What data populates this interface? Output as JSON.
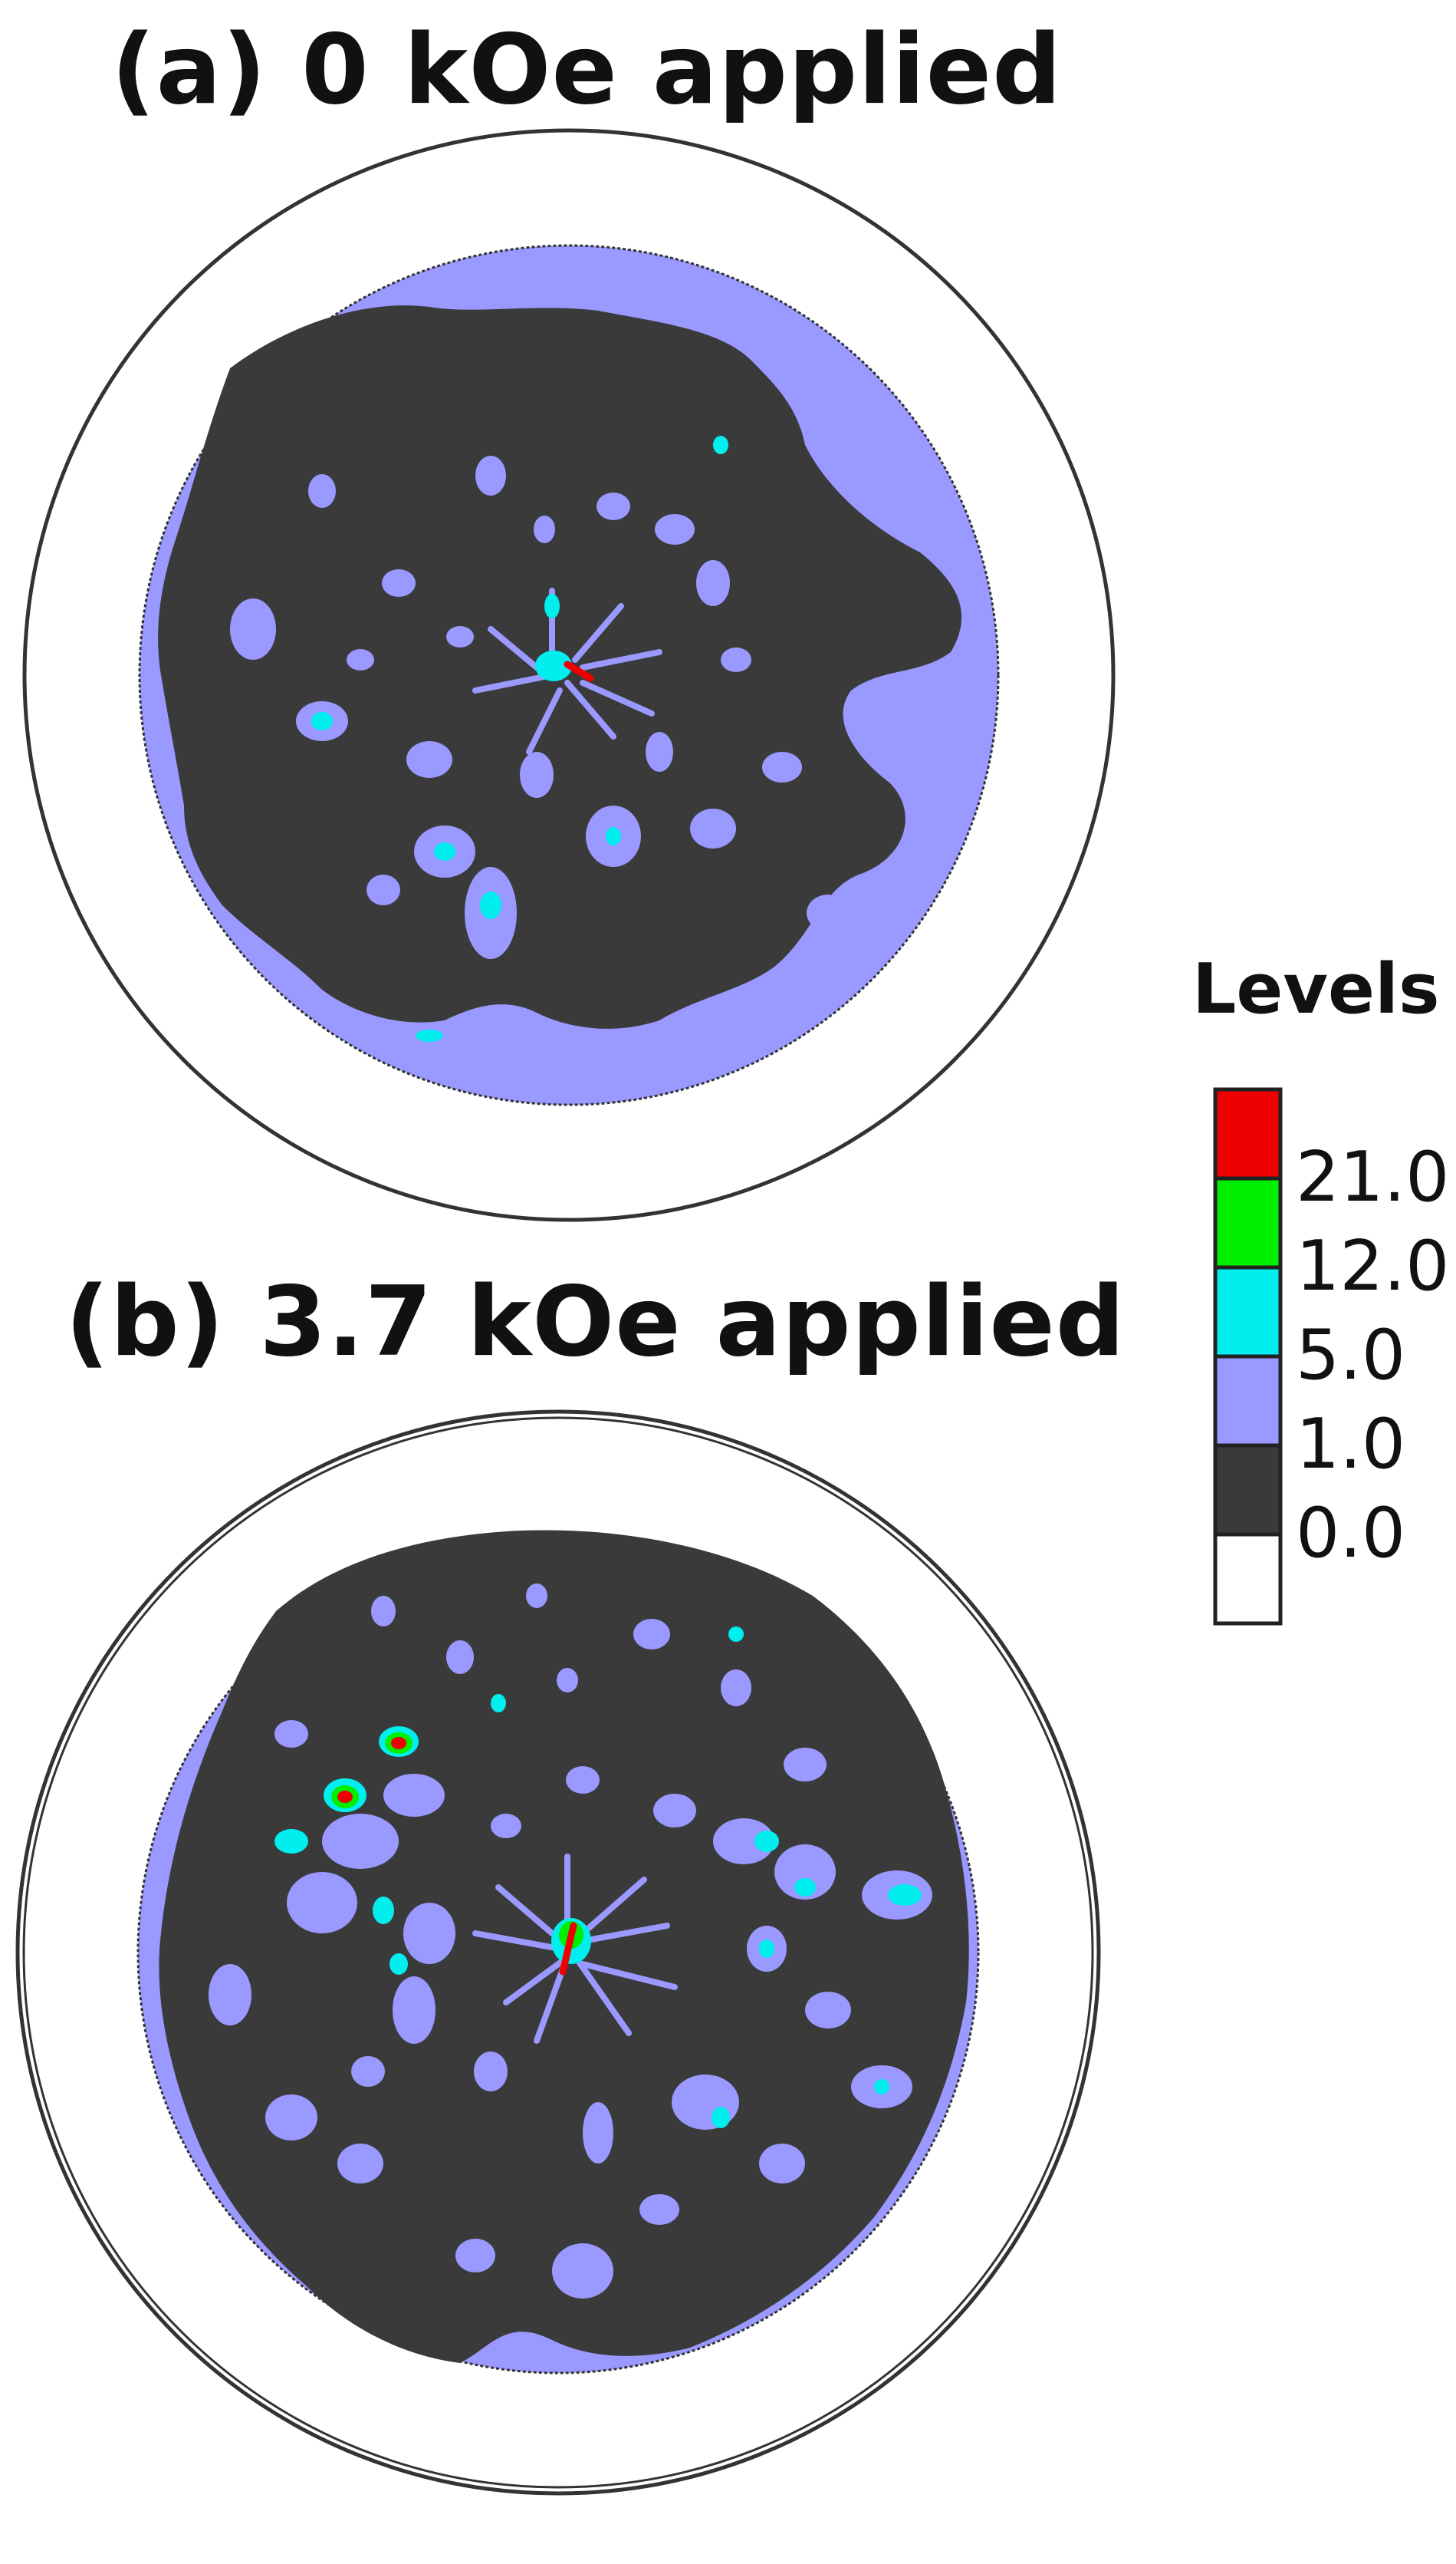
{
  "chart_data": [
    {
      "type": "heatmap",
      "subtype": "pole-figure-contour",
      "title": "(a) 0 kOe applied",
      "shared_legend": true
    },
    {
      "type": "heatmap",
      "subtype": "pole-figure-contour",
      "title": "(b) 3.7 kOe applied",
      "shared_legend": true
    }
  ],
  "legend": {
    "title": "Levels",
    "placement": "right",
    "levels": [
      "21.0",
      "12.0",
      "5.0",
      "1.0",
      "0.0"
    ],
    "bins": [
      {
        "from": 21.0,
        "to": null,
        "color": "#ee0000"
      },
      {
        "from": 12.0,
        "to": 21.0,
        "color": "#00ee00"
      },
      {
        "from": 5.0,
        "to": 12.0,
        "color": "#00eeee"
      },
      {
        "from": 1.0,
        "to": 5.0,
        "color": "#9999ff"
      },
      {
        "from": 0.0,
        "to": 1.0,
        "color": "#3a3a3a"
      },
      {
        "from": null,
        "to": 0.0,
        "color": "#ffffff"
      }
    ]
  },
  "colors": {
    "dark": "#3a3a3a",
    "lavender": "#9999ff",
    "cyan": "#00eeee",
    "green": "#00ee00",
    "red": "#ee0000",
    "outline": "#333333"
  }
}
